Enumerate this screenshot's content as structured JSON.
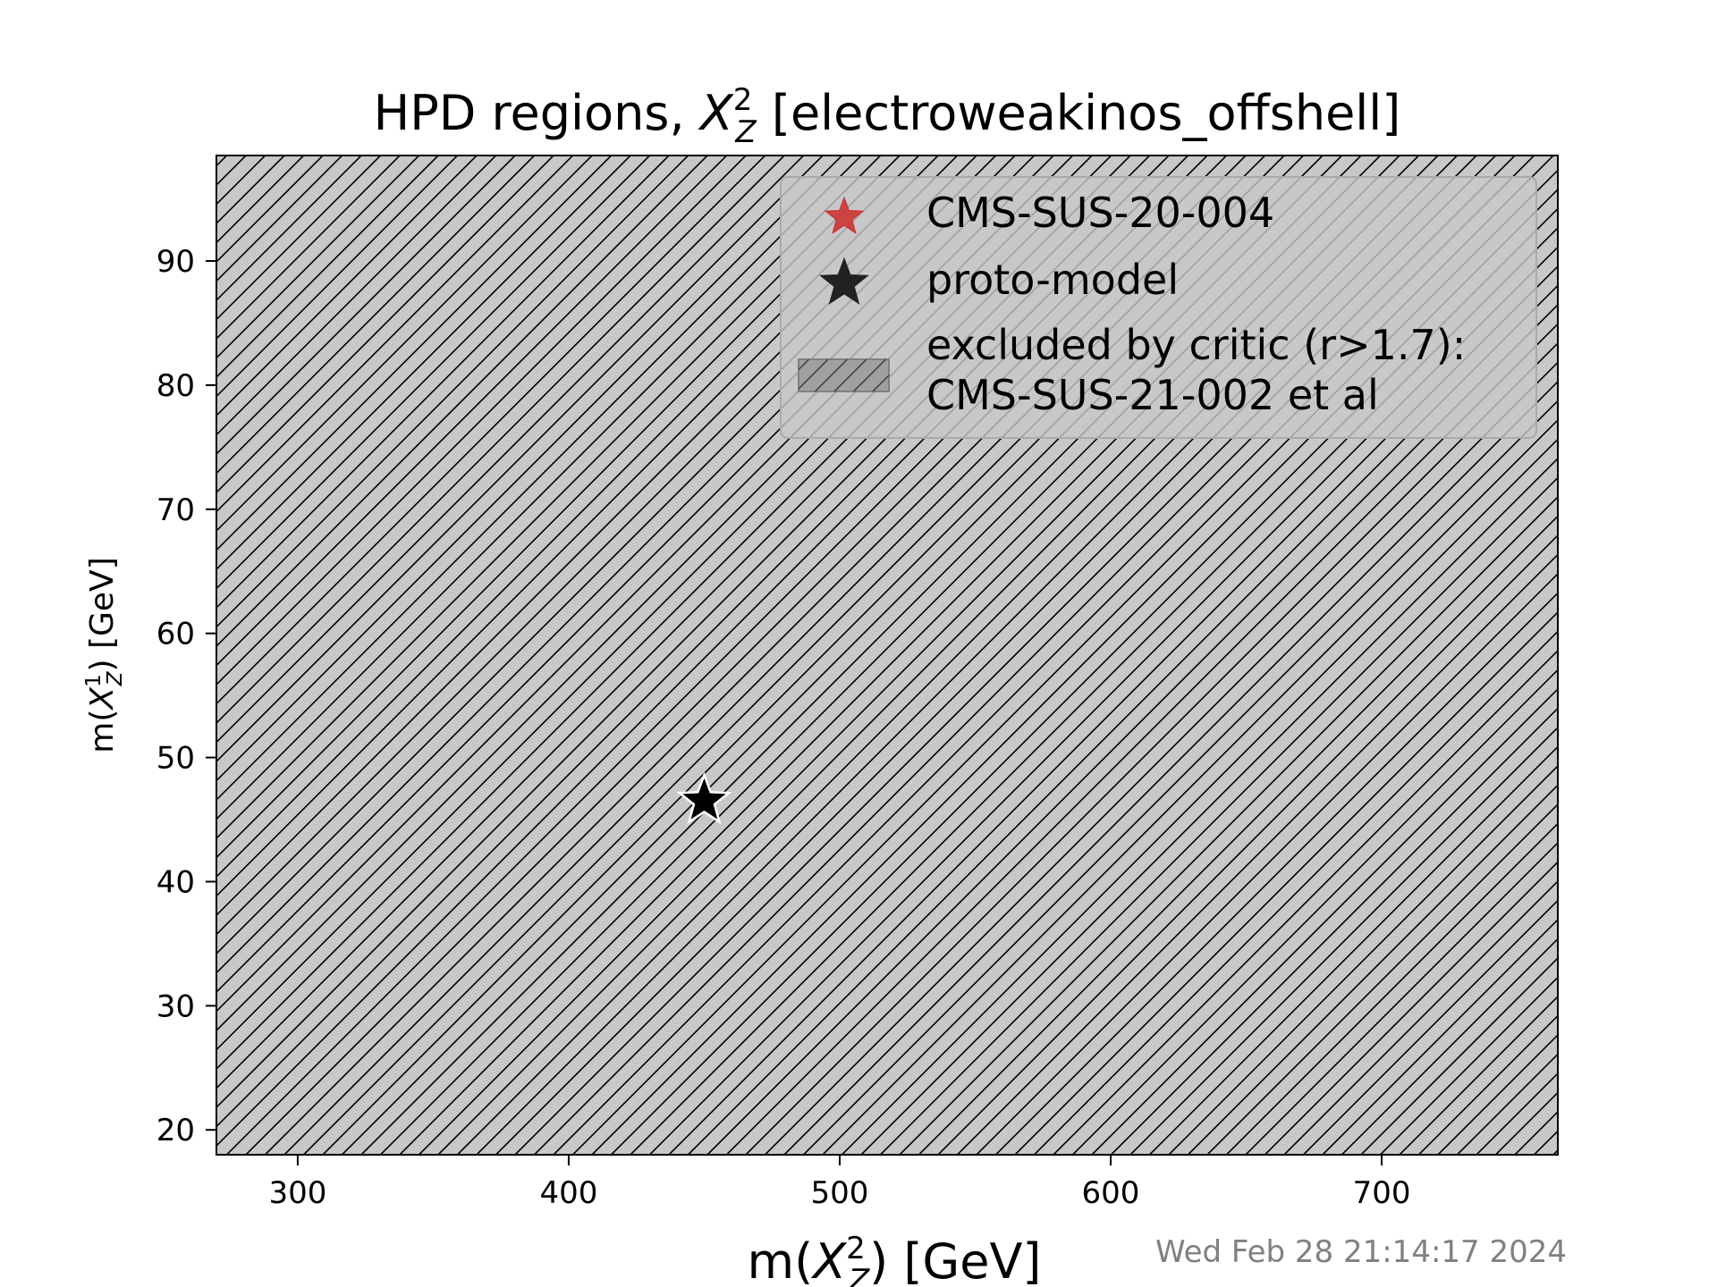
{
  "chart_data": {
    "type": "scatter",
    "title": {
      "prefix": "HPD regions, ",
      "var": "X",
      "sup": "2",
      "sub": "Z",
      "suffix": " [electroweakinos_offshell]"
    },
    "xlabel": {
      "prefix": "m(",
      "var": "X",
      "sup": "2",
      "sub": "Z",
      "suffix": ") [GeV]"
    },
    "ylabel": {
      "prefix": "m(",
      "var": "X",
      "sup": "1",
      "sub": "Z",
      "suffix": ") [GeV]"
    },
    "xlim": [
      270,
      765
    ],
    "ylim": [
      18,
      98.5
    ],
    "xticks": [
      300,
      400,
      500,
      600,
      700
    ],
    "yticks": [
      20,
      30,
      40,
      50,
      60,
      70,
      80,
      90
    ],
    "excluded_region": {
      "fill_color": "#c8c8c8",
      "hatch_color": "#000000"
    },
    "points": [
      {
        "name": "proto-model",
        "x": 450,
        "y": 46.5,
        "marker": "star",
        "color": "#000000"
      }
    ],
    "legend": {
      "position": "top-right",
      "entries": [
        {
          "label": "CMS-SUS-20-004",
          "marker": "star",
          "color": "#cc2b2b"
        },
        {
          "label": "proto-model",
          "marker": "star",
          "color": "#000000"
        },
        {
          "label": "excluded by critic (r>1.7):",
          "label2": "CMS-SUS-21-002 et al",
          "marker": "hatch-patch",
          "color": "#a0a0a0"
        }
      ]
    },
    "timestamp": "Wed Feb 28 21:14:17 2024"
  }
}
